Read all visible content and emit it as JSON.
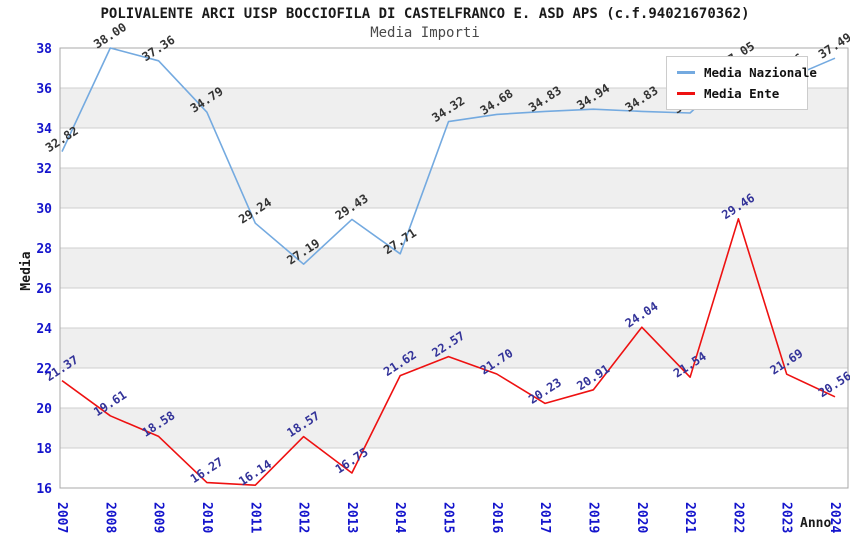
{
  "header": {
    "title": "POLIVALENTE ARCI UISP BOCCIOFILA DI CASTELFRANCO E. ASD APS (c.f.94021670362)",
    "subtitle": "Media Importi"
  },
  "chart_data": {
    "type": "line",
    "title": "POLIVALENTE ARCI UISP BOCCIOFILA DI CASTELFRANCO E. ASD APS (c.f.94021670362)",
    "subtitle": "Media Importi",
    "xlabel": "Anno",
    "ylabel": "Media",
    "categories": [
      "2007",
      "2008",
      "2009",
      "2010",
      "2011",
      "2012",
      "2013",
      "2014",
      "2015",
      "2016",
      "2017",
      "2019",
      "2020",
      "2021",
      "2022",
      "2023",
      "2024"
    ],
    "series": [
      {
        "name": "Media Nazionale",
        "color": "#74AAE0",
        "label_color": "#333333",
        "values": [
          "32.82",
          "38.00",
          "37.36",
          "34.79",
          "29.24",
          "27.19",
          "29.43",
          "27.71",
          "34.32",
          "34.68",
          "34.83",
          "34.94",
          "34.83",
          "34.75",
          "37.05",
          "36.46",
          "37.49"
        ]
      },
      {
        "name": "Media Ente",
        "color": "#EE1111",
        "label_color": "#333399",
        "values": [
          "21.37",
          "19.61",
          "18.58",
          "16.27",
          "16.14",
          "18.57",
          "16.75",
          "21.62",
          "22.57",
          "21.70",
          "20.23",
          "20.91",
          "24.04",
          "21.54",
          "29.46",
          "21.69",
          "20.56"
        ]
      }
    ],
    "ylim": [
      16,
      38
    ],
    "ytick_step": 2,
    "grid": true,
    "legend_position": "top-right",
    "colors": {
      "tick_label": "#1414CC",
      "band_fill": "#EFEFEF",
      "gridline": "#CFCFCF",
      "plot_border": "#A8A8A8",
      "axis_title": "#1a1a1a"
    }
  }
}
